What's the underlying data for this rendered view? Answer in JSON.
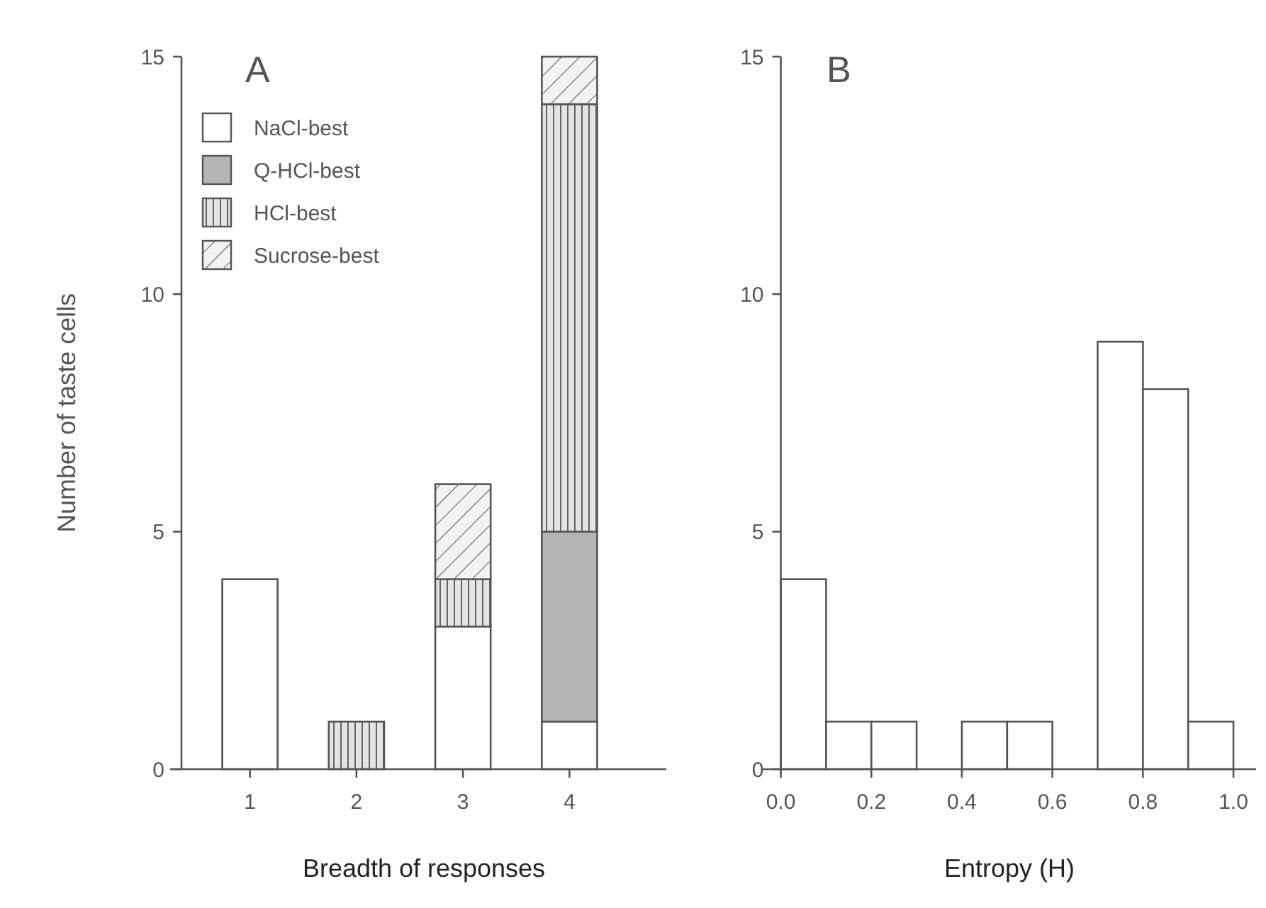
{
  "chart_data": [
    {
      "type": "bar",
      "title": "A",
      "xlabel": "Breadth of responses",
      "ylabel": "Number of taste cells",
      "categories": [
        "1",
        "2",
        "3",
        "4"
      ],
      "stacked": true,
      "ylim": [
        0,
        15
      ],
      "yticks": [
        0,
        5,
        10,
        15
      ],
      "legend": "top left",
      "series": [
        {
          "name": "NaCl-best",
          "color": "#ffffff",
          "values": [
            4,
            0,
            3,
            1
          ]
        },
        {
          "name": "Q-HCl-best",
          "color": "#b4b4b4",
          "values": [
            0,
            0,
            0,
            4
          ]
        },
        {
          "name": "HCl-best",
          "color": "#e4e4e4",
          "values": [
            0,
            1,
            1,
            9
          ]
        },
        {
          "name": "Sucrose-best",
          "color": "#f2f2f2",
          "values": [
            0,
            0,
            2,
            1
          ]
        }
      ]
    },
    {
      "type": "histogram",
      "title": "B",
      "xlabel": "Entropy (H)",
      "bins": [
        0,
        0.1,
        0.2,
        0.3,
        0.4,
        0.5,
        0.6,
        0.7,
        0.8,
        0.9,
        1.0
      ],
      "values": [
        4,
        1,
        1,
        0,
        1,
        1,
        0,
        9,
        8,
        1
      ],
      "color": "#ffffff",
      "xlim": [
        -0.04,
        1.05
      ],
      "xticks": [
        {
          "value": 0,
          "label": "0.0"
        },
        0.2,
        0.4,
        0.6,
        0.8,
        {
          "value": 1,
          "label": "1.0"
        }
      ],
      "ylim": [
        0,
        15
      ],
      "yticks": [
        0,
        5,
        10,
        15
      ]
    }
  ]
}
